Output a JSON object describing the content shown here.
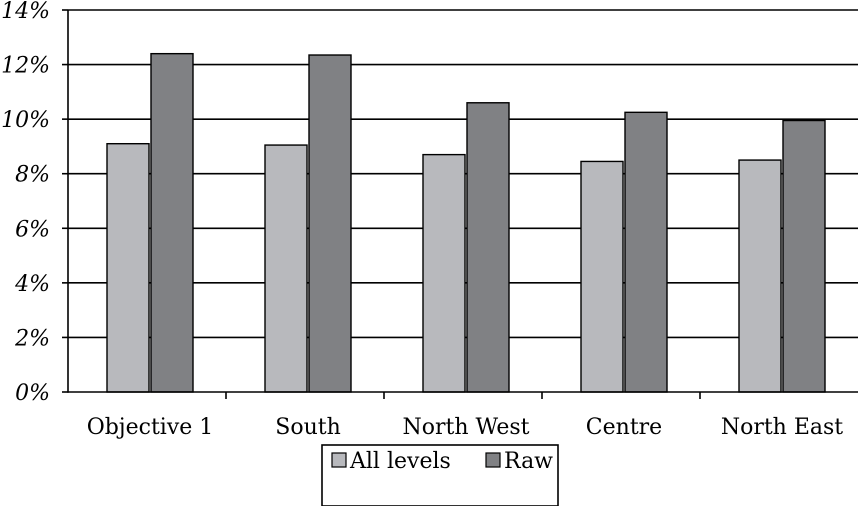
{
  "chart_data": {
    "type": "bar",
    "categories": [
      "Objective 1",
      "South",
      "North West",
      "Centre",
      "North East"
    ],
    "series": [
      {
        "name": "All levels",
        "values": [
          9.1,
          9.05,
          8.7,
          8.45,
          8.5
        ],
        "color": "#b8b9bd"
      },
      {
        "name": "Raw",
        "values": [
          12.4,
          12.35,
          10.6,
          10.25,
          9.95
        ],
        "color": "#808184"
      }
    ],
    "yticks": [
      "0%",
      "2%",
      "4%",
      "6%",
      "8%",
      "10%",
      "12%",
      "14%"
    ],
    "ylim": [
      0,
      14
    ],
    "grid": true,
    "legend_position": "bottom-center",
    "title": "",
    "xlabel": "",
    "ylabel": ""
  }
}
